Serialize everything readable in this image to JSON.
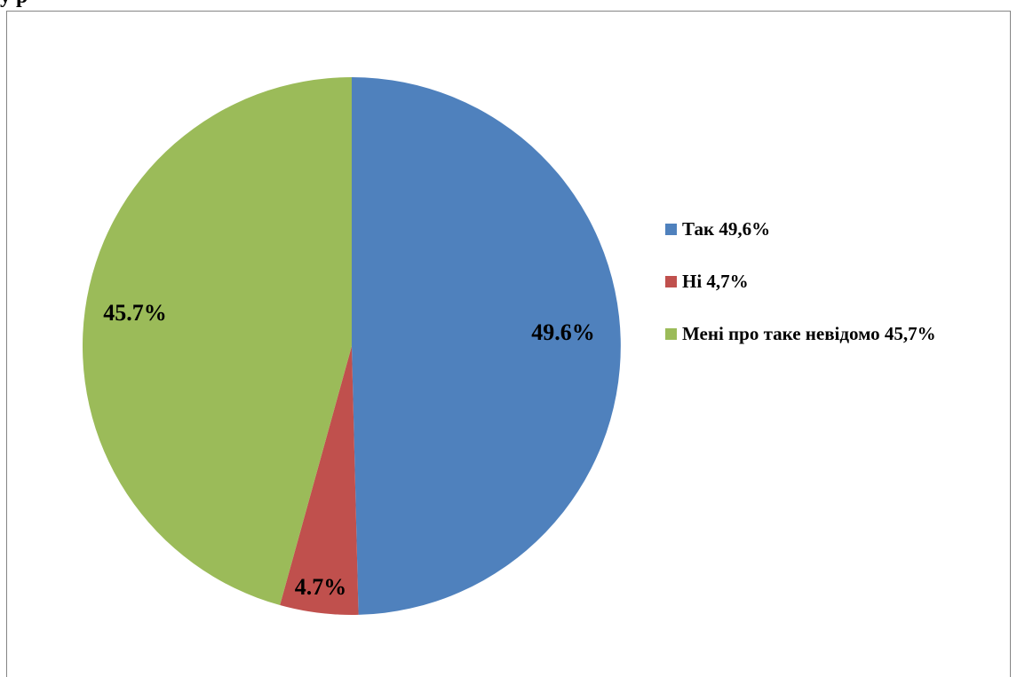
{
  "page": {
    "heading_fragment": "у р"
  },
  "chart_data": {
    "type": "pie",
    "categories": [
      "Так",
      "Ні",
      "Мені про таке невідомо"
    ],
    "values": [
      49.6,
      4.7,
      45.7
    ],
    "data_labels": [
      "49.6%",
      "4.7%",
      "45.7%"
    ],
    "colors": [
      "#4F81BD",
      "#C0504D",
      "#9BBB59"
    ],
    "legend": {
      "placement": "right",
      "entries": [
        "Так 49,6%",
        "Ні 4,7%",
        "Мені про таке невідомо 45,7%"
      ]
    },
    "start_angle": "12 o'clock",
    "direction": "clockwise"
  }
}
